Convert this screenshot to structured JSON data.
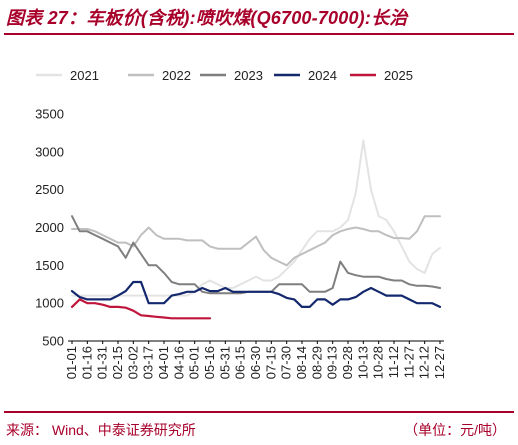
{
  "header": {
    "title": "图表 27：车板价(含税):喷吹煤(Q6700-7000):长治"
  },
  "footer": {
    "source": "来源：  Wind、中泰证券研究所",
    "unit": "（单位：元/吨）"
  },
  "colors": {
    "brand": "#a8002a",
    "s2021": "#e3e3e3",
    "s2022": "#bfbfbf",
    "s2023": "#7f7f7f",
    "s2024": "#14286e",
    "s2025": "#c0163c"
  },
  "chart_data": {
    "type": "line",
    "x_label_indices": [
      0,
      2,
      4,
      6,
      8,
      10,
      12,
      14,
      16,
      18,
      20,
      22,
      24,
      26,
      28,
      30,
      32,
      34,
      36,
      38,
      40,
      42,
      44,
      46
    ],
    "x": [
      "01-01",
      "01-08",
      "01-16",
      "01-23",
      "01-31",
      "02-07",
      "02-15",
      "02-22",
      "03-02",
      "03-09",
      "03-17",
      "03-24",
      "04-01",
      "04-08",
      "04-16",
      "04-23",
      "05-01",
      "05-08",
      "05-16",
      "05-23",
      "05-31",
      "06-07",
      "06-15",
      "06-22",
      "06-30",
      "07-07",
      "07-15",
      "07-22",
      "07-30",
      "08-06",
      "08-14",
      "08-21",
      "08-29",
      "09-05",
      "09-13",
      "09-20",
      "09-28",
      "10-05",
      "10-13",
      "10-20",
      "10-28",
      "11-04",
      "11-12",
      "11-19",
      "11-27",
      "12-04",
      "12-12",
      "12-19",
      "12-27"
    ],
    "x_tick_labels": [
      "01-01",
      "01-16",
      "01-31",
      "02-15",
      "03-02",
      "03-17",
      "04-01",
      "04-16",
      "05-01",
      "05-16",
      "05-31",
      "06-15",
      "06-30",
      "07-15",
      "07-30",
      "08-14",
      "08-29",
      "09-13",
      "09-28",
      "10-13",
      "10-28",
      "11-12",
      "11-27",
      "12-12",
      "12-27"
    ],
    "ylim": [
      500,
      3500
    ],
    "yticks": [
      500,
      1000,
      1500,
      2000,
      2500,
      3000,
      3500
    ],
    "title": "",
    "xlabel": "",
    "ylabel": "",
    "legend_position": "top",
    "series": [
      {
        "name": "2021",
        "values": [
          1100,
          1100,
          1100,
          1100,
          1100,
          1100,
          1100,
          1100,
          1100,
          1100,
          1100,
          1100,
          1100,
          1100,
          1100,
          1100,
          1150,
          1250,
          1300,
          1250,
          1200,
          1200,
          1250,
          1300,
          1350,
          1300,
          1300,
          1350,
          1450,
          1550,
          1700,
          1850,
          1950,
          1950,
          1950,
          2000,
          2100,
          2450,
          3150,
          2500,
          2150,
          2100,
          1950,
          1750,
          1550,
          1450,
          1400,
          1650,
          1730
        ]
      },
      {
        "name": "2022",
        "values": [
          1980,
          1980,
          1980,
          1950,
          1900,
          1850,
          1800,
          1800,
          1750,
          1900,
          2000,
          1900,
          1850,
          1850,
          1850,
          1830,
          1830,
          1830,
          1750,
          1720,
          1720,
          1720,
          1720,
          1800,
          1880,
          1700,
          1600,
          1550,
          1500,
          1600,
          1650,
          1700,
          1750,
          1800,
          1900,
          1950,
          1980,
          2000,
          1980,
          1950,
          1950,
          1900,
          1860,
          1860,
          1850,
          1950,
          2150,
          2150,
          2150
        ]
      },
      {
        "name": "2023",
        "values": [
          2150,
          1950,
          1950,
          1900,
          1850,
          1800,
          1750,
          1600,
          1800,
          1650,
          1500,
          1500,
          1400,
          1280,
          1250,
          1250,
          1250,
          1150,
          1130,
          1130,
          1130,
          1130,
          1130,
          1150,
          1150,
          1150,
          1150,
          1250,
          1250,
          1250,
          1250,
          1150,
          1150,
          1150,
          1200,
          1550,
          1400,
          1370,
          1350,
          1350,
          1350,
          1320,
          1300,
          1300,
          1250,
          1230,
          1230,
          1220,
          1200
        ]
      },
      {
        "name": "2024",
        "values": [
          1160,
          1080,
          1050,
          1050,
          1050,
          1050,
          1100,
          1160,
          1280,
          1280,
          1000,
          1000,
          1000,
          1100,
          1120,
          1150,
          1150,
          1200,
          1160,
          1160,
          1200,
          1150,
          1150,
          1150,
          1150,
          1150,
          1150,
          1120,
          1070,
          1050,
          950,
          950,
          1050,
          1050,
          980,
          1050,
          1050,
          1080,
          1150,
          1200,
          1150,
          1100,
          1100,
          1100,
          1050,
          1000,
          1000,
          1000,
          950
        ]
      },
      {
        "name": "2025",
        "values": [
          950,
          1050,
          1000,
          1000,
          980,
          950,
          950,
          940,
          900,
          840,
          830,
          820,
          810,
          800,
          800,
          800,
          800,
          800,
          800,
          null,
          null,
          null,
          null,
          null,
          null,
          null,
          null,
          null,
          null,
          null,
          null,
          null,
          null,
          null,
          null,
          null,
          null,
          null,
          null,
          null,
          null,
          null,
          null,
          null,
          null,
          null,
          null,
          null,
          null
        ]
      }
    ]
  }
}
